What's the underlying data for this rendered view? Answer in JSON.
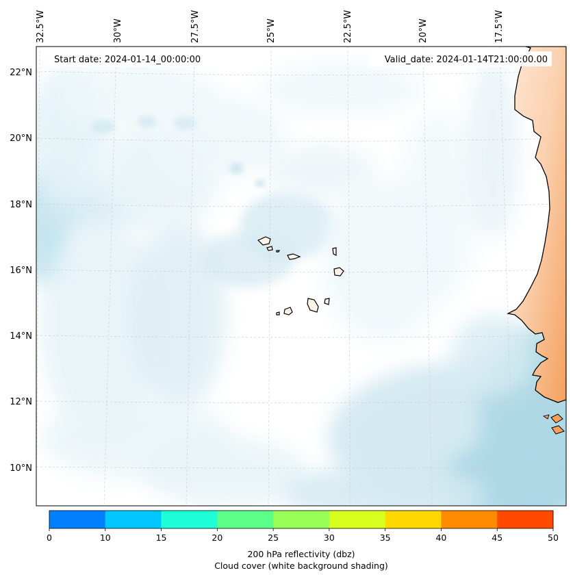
{
  "map": {
    "start_date": "Start date: 2024-01-14_00:00:00",
    "valid_date": "Valid_date: 2024-01-14T21:00:00.00",
    "lon_labels": [
      "32.5°W",
      "30°W",
      "27.5°W",
      "25°W",
      "22.5°W",
      "20°W",
      "17.5°W"
    ],
    "lat_labels": [
      "22°N",
      "20°N",
      "18°N",
      "16°N",
      "14°N",
      "12°N",
      "10°N"
    ],
    "gridlines": true
  },
  "colorbar": {
    "ticks": [
      "0",
      "10",
      "15",
      "20",
      "25",
      "30",
      "35",
      "40",
      "45",
      "50"
    ],
    "colors": [
      "#0080ff",
      "#00c8ff",
      "#1effd8",
      "#5cff8a",
      "#98ff56",
      "#d8ff1e",
      "#ffd800",
      "#ff8c00",
      "#ff4a00"
    ],
    "label_line1": "200 hPa reflectivity (dbz)",
    "label_line2": "Cloud cover (white background shading)"
  },
  "colors": {
    "cloud": "#add8e6",
    "land": "#f5a05e",
    "coast": "#000000",
    "grid": "#c8c8c8"
  }
}
